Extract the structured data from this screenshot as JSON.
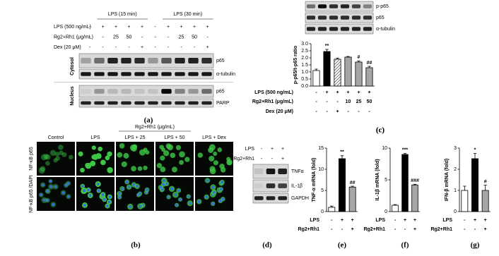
{
  "a": {
    "groups": [
      "LPS (15 min)",
      "LPS (30 min)"
    ],
    "rows": [
      {
        "label": "LPS (500 ng/mL)",
        "signs": [
          "-",
          "+",
          "+",
          "+",
          "+",
          "-",
          "+",
          "+",
          "+",
          "+"
        ]
      },
      {
        "label": "Rg2+Rh1 (μg/mL)",
        "signs": [
          "-",
          "-",
          "25",
          "50",
          "-",
          "-",
          "-",
          "25",
          "50",
          "-"
        ]
      },
      {
        "label": "Dex (20 μM)",
        "signs": [
          "-",
          "-",
          "-",
          "-",
          "+",
          "-",
          "-",
          "-",
          "-",
          "+"
        ]
      }
    ],
    "fractions": [
      "Cytosol",
      "Nucleus"
    ],
    "blots": [
      "p65",
      "α-tubulin",
      "p65",
      "PARP"
    ],
    "label": "(a)"
  },
  "b": {
    "group": "Rg2+Rh1 (μg/mL)",
    "columns": [
      "Control",
      "LPS",
      "LPS + 25",
      "LPS + 50",
      "LPS + Dex"
    ],
    "rows": [
      "NF-κB p65",
      "NF-κB p65 /DAPI"
    ],
    "label": "(b)"
  },
  "c": {
    "blots": [
      "p-p65",
      "p65",
      "α-tubulin"
    ],
    "label": "(c)"
  },
  "d": {
    "rows": [
      {
        "label": "LPS",
        "signs": [
          "-",
          "+",
          "+"
        ]
      },
      {
        "label": "Rg2+Rh1",
        "signs": [
          "-",
          "-",
          "+"
        ]
      }
    ],
    "blots": [
      "TNFα",
      "IL-1β",
      "GAPDH"
    ],
    "label": "(d)"
  },
  "chart_data": [
    {
      "type": "bar",
      "ylabel": "p-p65/t-p65 ratio",
      "ylim": [
        0,
        3
      ],
      "yticks": [
        {
          "value": 0,
          "label": "0.0"
        },
        {
          "value": 0.5,
          "label": "0.5"
        },
        {
          "value": 1,
          "label": "1.0"
        },
        {
          "value": 1.5,
          "label": "1.5"
        },
        {
          "value": 2,
          "label": "2.0"
        },
        {
          "value": 2.5,
          "label": "2.5"
        },
        {
          "value": 3,
          "label": "3.0"
        }
      ],
      "values": [
        1.1,
        2.45,
        1.9,
        2.05,
        1.7,
        1.3
      ],
      "errors": [
        0.1,
        0.15,
        0.08,
        0.05,
        0.08,
        0.1
      ],
      "colors": [
        "#ffffff",
        "#000000",
        "#ffffff",
        "#a6a6a6",
        "#a6a6a6",
        "#a6a6a6"
      ],
      "hatch_index": 2,
      "annotations": [
        null,
        "**",
        null,
        null,
        "#",
        "##"
      ],
      "conditions": [
        {
          "label": "LPS (500 ng/mL)",
          "signs": [
            "-",
            "+",
            "+",
            "+",
            "+",
            "+"
          ]
        },
        {
          "label": "Rg2+Rh1 (μg/mL)",
          "signs": [
            "-",
            "-",
            "-",
            "10",
            "25",
            "50"
          ]
        },
        {
          "label": "Dex (20 μM)",
          "signs": [
            "-",
            "-",
            "+",
            "-",
            "-",
            "-"
          ]
        }
      ],
      "panel_label": "(c)"
    },
    {
      "type": "bar",
      "ylabel": "TNF-α mRNA (fold)",
      "ylim": [
        0,
        15
      ],
      "yticks": [
        0,
        5,
        10,
        15
      ],
      "values": [
        1,
        12.5,
        5.8
      ],
      "errors": [
        0.3,
        0.7,
        0.2
      ],
      "colors": [
        "#ffffff",
        "#000000",
        "#a6a6a6"
      ],
      "annotations": [
        null,
        "**",
        "##"
      ],
      "conditions": [
        {
          "label": "LPS",
          "signs": [
            "-",
            "+",
            "+"
          ]
        },
        {
          "label": "Rg2+Rh1",
          "signs": [
            "-",
            "-",
            "+"
          ]
        }
      ],
      "panel_label": "(e)"
    },
    {
      "type": "bar",
      "ylabel": "IL-1β mRNA (fold)",
      "ylim": [
        0,
        10
      ],
      "yticks": [
        0,
        5,
        10
      ],
      "values": [
        1,
        9,
        4.2
      ],
      "errors": [
        0.1,
        0.15,
        0.1
      ],
      "colors": [
        "#ffffff",
        "#000000",
        "#a6a6a6"
      ],
      "annotations": [
        null,
        "***",
        "###"
      ],
      "conditions": [
        {
          "label": "LPS",
          "signs": [
            "-",
            "+",
            "+"
          ]
        },
        {
          "label": "Rg2+Rh1",
          "signs": [
            "-",
            "-",
            "+"
          ]
        }
      ],
      "panel_label": "(f)"
    },
    {
      "type": "bar",
      "ylabel": "IFN-β mRNA (fold)",
      "ylim": [
        0,
        3
      ],
      "yticks": [
        0,
        1,
        2,
        3
      ],
      "values": [
        1,
        2.5,
        1
      ],
      "errors": [
        0.2,
        0.25,
        0.25
      ],
      "colors": [
        "#ffffff",
        "#000000",
        "#a6a6a6"
      ],
      "annotations": [
        null,
        "*",
        "#"
      ],
      "conditions": [
        {
          "label": "LPS",
          "signs": [
            "-",
            "+",
            "+"
          ]
        },
        {
          "label": "Rg2+Rh1",
          "signs": [
            "-",
            "-",
            "+"
          ]
        }
      ],
      "panel_label": "(g)"
    }
  ]
}
